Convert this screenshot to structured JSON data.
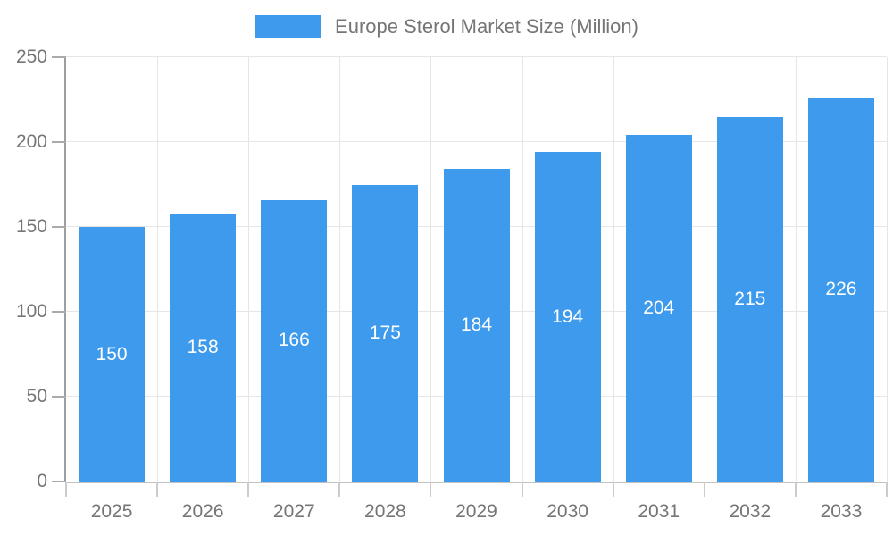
{
  "legend": {
    "label": "Europe Sterol Market Size (Million)"
  },
  "chart_data": {
    "type": "bar",
    "title": "Europe Sterol Market Size (Million)",
    "series_name": "Europe Sterol Market Size (Million)",
    "categories": [
      "2025",
      "2026",
      "2027",
      "2028",
      "2029",
      "2030",
      "2031",
      "2032",
      "2033"
    ],
    "values": [
      150,
      158,
      166,
      175,
      184,
      194,
      204,
      215,
      226
    ],
    "xlabel": "",
    "ylabel": "",
    "ylim": [
      0,
      250
    ],
    "ytick_step": 50,
    "yticks": [
      0,
      50,
      100,
      150,
      200,
      250
    ],
    "grid": true,
    "legend_position": "top",
    "value_labels": "inside-center"
  },
  "colors": {
    "bar": "#3E9AEC",
    "bar_label": "#FFFFFF",
    "grid": "#E6E6E6",
    "y_axis_line": "#9E9E9E",
    "x_axis_line": "#C2C2C2",
    "y_tick": "#AAAAAA",
    "x_tick": "#CCCCCC",
    "text": "#757575"
  }
}
